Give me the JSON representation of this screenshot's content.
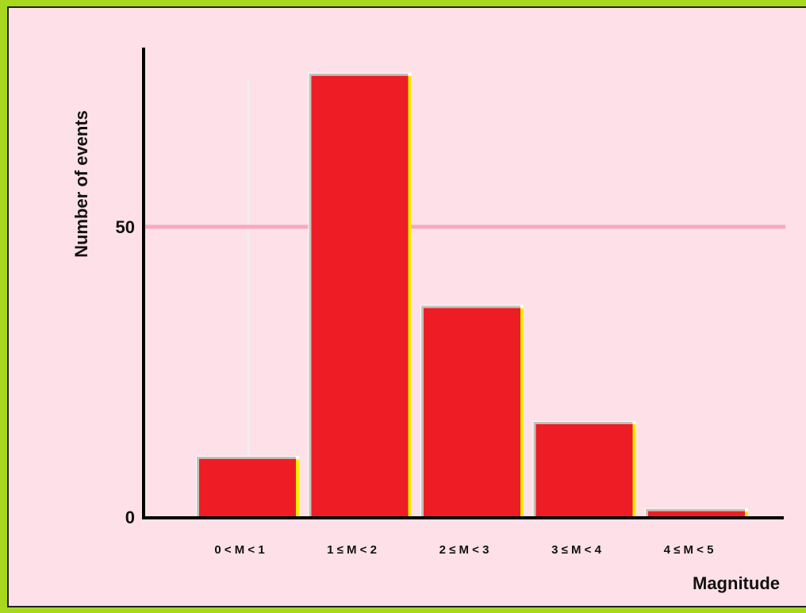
{
  "chart_data": {
    "type": "bar",
    "title": "",
    "xlabel": "Magnitude",
    "ylabel": "Number of events",
    "categories": [
      "0 < M < 1",
      "1 ≤ M < 2",
      "2 ≤ M < 3",
      "3 ≤ M < 4",
      "4 ≤ M < 5"
    ],
    "values": [
      10,
      76,
      36,
      16,
      1
    ],
    "ylim": [
      0,
      76
    ],
    "yticks": [
      0,
      50
    ],
    "ytick_labels": [
      "0",
      "50"
    ],
    "grid": "horizontal line at 50",
    "legend": "none",
    "colors": {
      "bar": "#ee1c24",
      "bar_highlight": "#ffee00",
      "gridline": "#f8a9c0",
      "background": "#fde0e8",
      "frame": "#a8d81e",
      "axis": "#000000"
    }
  }
}
